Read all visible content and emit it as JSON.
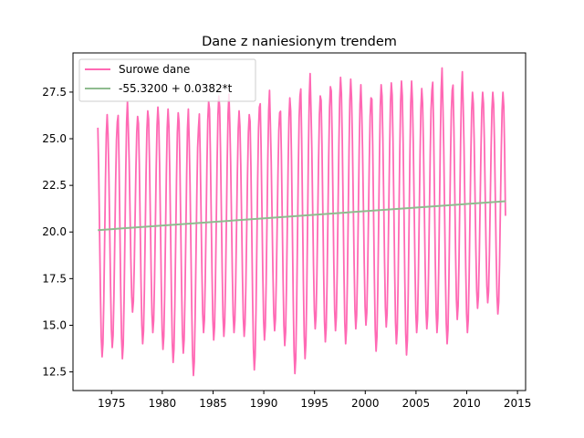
{
  "chart_data": {
    "type": "line",
    "title": "Dane z naniesionym trendem",
    "xlabel": "",
    "ylabel": "",
    "xlim": [
      1971.2,
      2015.8
    ],
    "ylim": [
      11.5,
      29.6
    ],
    "xticks": [
      1975,
      1980,
      1985,
      1990,
      1995,
      2000,
      2005,
      2010,
      2015
    ],
    "yticks": [
      12.5,
      15.0,
      17.5,
      20.0,
      22.5,
      25.0,
      27.5
    ],
    "ytick_labels": [
      "12.5",
      "15.0",
      "17.5",
      "20.0",
      "22.5",
      "25.0",
      "27.5"
    ],
    "legend_position": "upper-left",
    "grid": false,
    "series": [
      {
        "name": "Surowe dane",
        "color": "#ff69b4",
        "description_kind": "monthly-seasonal",
        "x_start": 1973.65,
        "x_end": 2013.85,
        "yearly_peaks": [
          26.3,
          25.9,
          27.0,
          26.2,
          26.5,
          26.7,
          26.6,
          26.4,
          26.6,
          25.6,
          27.0,
          27.3,
          27.4,
          26.5,
          26.3,
          26.7,
          27.6,
          26.4,
          27.2,
          27.3,
          28.5,
          27.3,
          27.8,
          28.3,
          28.2,
          27.9,
          27.2,
          27.9,
          28.0,
          28.1,
          28.1,
          27.7,
          27.6,
          28.8,
          27.6,
          28.6,
          27.5
        ],
        "yearly_troughs": [
          13.3,
          13.8,
          13.2,
          15.7,
          14.0,
          14.6,
          13.7,
          13.0,
          13.5,
          12.3,
          14.6,
          14.2,
          14.4,
          14.6,
          14.4,
          12.6,
          14.2,
          14.7,
          13.9,
          12.4,
          13.2,
          14.8,
          14.1,
          14.7,
          14.0,
          14.8,
          15.0,
          13.6,
          14.9,
          14.0,
          13.4,
          14.6,
          14.8,
          14.6,
          14.0,
          15.3,
          14.6,
          15.9,
          16.2,
          15.6,
          13.5,
          15.0
        ]
      },
      {
        "name": "-55.3200 + 0.0382*t",
        "color": "#8fbc8f",
        "intercept": -55.32,
        "slope": 0.0382,
        "x": [
          1973.65,
          2013.85
        ],
        "y": [
          20.1,
          21.65
        ]
      }
    ]
  }
}
